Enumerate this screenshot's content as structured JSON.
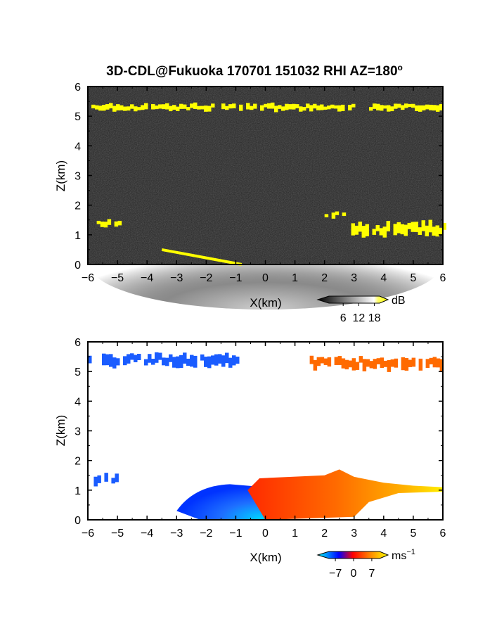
{
  "title": "3D-CDL@Fukuoka 170701 151032 RHI AZ=180",
  "title_degree": "o",
  "chart_data": [
    {
      "type": "heatmap",
      "name": "backscatter",
      "xlabel": "X(km)",
      "ylabel": "Z(km)",
      "xlim": [
        -6,
        6
      ],
      "ylim": [
        0,
        6
      ],
      "xticks": [
        "-6",
        "-5",
        "-4",
        "-3",
        "-2",
        "-1",
        "0",
        "1",
        "2",
        "3",
        "4",
        "5",
        "6"
      ],
      "yticks": [
        "0",
        "1",
        "2",
        "3",
        "4",
        "5",
        "6"
      ],
      "grid": false,
      "colorbar": {
        "unit": "dB",
        "ticks": [
          "6",
          "12",
          "18"
        ],
        "tick_values": [
          6,
          12,
          18
        ],
        "range": [
          0,
          20
        ],
        "colors": [
          "#000000",
          "#ffffff",
          "#ffff00"
        ]
      },
      "features": [
        {
          "kind": "layer",
          "x": [
            -6,
            6
          ],
          "z": [
            5.2,
            5.4
          ],
          "value_db": 19
        },
        {
          "kind": "layer",
          "x": [
            -5.7,
            -4.9
          ],
          "z": [
            1.3,
            1.5
          ],
          "value_db": 19
        },
        {
          "kind": "layer",
          "x": [
            2.9,
            6
          ],
          "z": [
            1.0,
            1.4
          ],
          "value_db": 19
        },
        {
          "kind": "layer",
          "x": [
            2.0,
            2.6
          ],
          "z": [
            1.6,
            1.8
          ],
          "value_db": 19
        },
        {
          "kind": "boundary_layer",
          "x": [
            -6,
            6
          ],
          "z": [
            0,
            1.5
          ],
          "value_db": 10
        },
        {
          "kind": "ground_clutter",
          "x": [
            -3.5,
            -0.8
          ],
          "z": [
            0,
            0.5
          ],
          "value_db": 19
        }
      ]
    },
    {
      "type": "heatmap",
      "name": "doppler_velocity",
      "xlabel": "X(km)",
      "ylabel": "Z(km)",
      "xlim": [
        -6,
        6
      ],
      "ylim": [
        0,
        6
      ],
      "xticks": [
        "-6",
        "-5",
        "-4",
        "-3",
        "-2",
        "-1",
        "0",
        "1",
        "2",
        "3",
        "4",
        "5",
        "6"
      ],
      "yticks": [
        "0",
        "1",
        "2",
        "3",
        "4",
        "5",
        "6"
      ],
      "grid": false,
      "colorbar": {
        "unit": "ms",
        "unit_exponent": "−1",
        "ticks": [
          "−7",
          "0",
          "7"
        ],
        "tick_values": [
          -7,
          0,
          7
        ],
        "range": [
          -10,
          10
        ],
        "colors": [
          "#00ffff",
          "#0000ff",
          "#ff0000",
          "#ffff00"
        ]
      },
      "features": [
        {
          "kind": "layer",
          "x": [
            -6,
            -1.0
          ],
          "z": [
            5.2,
            5.6
          ],
          "velocity": -5
        },
        {
          "kind": "layer",
          "x": [
            1.5,
            6
          ],
          "z": [
            5.1,
            5.5
          ],
          "velocity": 3
        },
        {
          "kind": "layer",
          "x": [
            -5.8,
            -5.0
          ],
          "z": [
            1.2,
            1.5
          ],
          "velocity": -4
        },
        {
          "kind": "boundary_layer_negative",
          "x": [
            -3,
            0
          ],
          "z": [
            0,
            1.2
          ],
          "velocity": -5
        },
        {
          "kind": "boundary_layer_positive",
          "x": [
            0,
            6
          ],
          "z": [
            0,
            1.6
          ],
          "velocity": 3
        }
      ]
    }
  ]
}
